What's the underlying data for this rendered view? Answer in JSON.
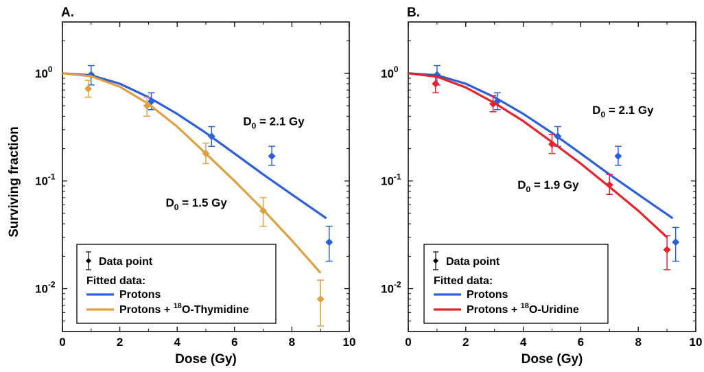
{
  "ylabel": "Surviving fraction",
  "colors": {
    "protons": "#2b5fd9",
    "thymidine": "#e0a040",
    "uridine": "#e8212a"
  },
  "chart_data": [
    {
      "type": "scatter",
      "panel_label": "A.",
      "xlabel": "Dose (Gy)",
      "xlim": [
        0,
        10
      ],
      "ylim": [
        0.004,
        3
      ],
      "yscale": "log",
      "x_ticks": [
        "0",
        "2",
        "4",
        "6",
        "8",
        "10"
      ],
      "y_ticks": [
        {
          "value": 1,
          "base": "10",
          "exp": "0"
        },
        {
          "value": 0.1,
          "base": "10",
          "exp": "-1"
        },
        {
          "value": 0.01,
          "base": "10",
          "exp": "-2"
        }
      ],
      "series": [
        {
          "name": "Protons",
          "color": "#2b5fd9",
          "points": [
            {
              "x": 1.0,
              "y": 0.97,
              "lo": 0.78,
              "hi": 1.18
            },
            {
              "x": 3.1,
              "y": 0.55,
              "lo": 0.46,
              "hi": 0.66
            },
            {
              "x": 5.2,
              "y": 0.26,
              "lo": 0.21,
              "hi": 0.32
            },
            {
              "x": 7.3,
              "y": 0.17,
              "lo": 0.14,
              "hi": 0.21
            },
            {
              "x": 9.3,
              "y": 0.027,
              "lo": 0.018,
              "hi": 0.038
            }
          ],
          "fit": {
            "x": [
              0,
              1,
              2,
              3,
              4,
              5,
              6,
              7,
              8,
              9.2
            ],
            "y": [
              1.0,
              0.96,
              0.8,
              0.6,
              0.42,
              0.28,
              0.18,
              0.115,
              0.075,
              0.045
            ]
          }
        },
        {
          "name": "Protons + ¹⁸O-Thymidine",
          "color": "#e0a040",
          "points": [
            {
              "x": 0.9,
              "y": 0.72,
              "lo": 0.6,
              "hi": 0.86
            },
            {
              "x": 2.95,
              "y": 0.5,
              "lo": 0.4,
              "hi": 0.6
            },
            {
              "x": 5.0,
              "y": 0.18,
              "lo": 0.145,
              "hi": 0.225
            },
            {
              "x": 7.0,
              "y": 0.053,
              "lo": 0.038,
              "hi": 0.07
            },
            {
              "x": 9.0,
              "y": 0.008,
              "lo": 0.0045,
              "hi": 0.012
            }
          ],
          "fit": {
            "x": [
              0,
              1,
              2,
              3,
              4,
              5,
              6,
              7,
              8,
              9
            ],
            "y": [
              1.0,
              0.94,
              0.75,
              0.52,
              0.32,
              0.18,
              0.1,
              0.054,
              0.028,
              0.014
            ]
          }
        }
      ],
      "annotations": [
        {
          "text_pre": "D",
          "sub": "0",
          "text_post": " = 2.1 Gy",
          "x": 6.3,
          "y": 0.33
        },
        {
          "text_pre": "D",
          "sub": "0",
          "text_post": " = 1.5 Gy",
          "x": 3.6,
          "y": 0.058
        }
      ],
      "legend": {
        "data_point": "Data point",
        "fitted_header": "Fitted data:",
        "entries": [
          {
            "label": "Protons",
            "color": "#2b5fd9"
          },
          {
            "label_pre": "Protons + ",
            "label_sup": "18",
            "label_post": "O-Thymidine",
            "color": "#e0a040"
          }
        ]
      }
    },
    {
      "type": "scatter",
      "panel_label": "B.",
      "xlabel": "Dose (Gy)",
      "xlim": [
        0,
        10
      ],
      "ylim": [
        0.004,
        3
      ],
      "yscale": "log",
      "x_ticks": [
        "0",
        "2",
        "4",
        "6",
        "8",
        "10"
      ],
      "y_ticks": [
        {
          "value": 1,
          "base": "10",
          "exp": "0"
        },
        {
          "value": 0.1,
          "base": "10",
          "exp": "-1"
        },
        {
          "value": 0.01,
          "base": "10",
          "exp": "-2"
        }
      ],
      "series": [
        {
          "name": "Protons",
          "color": "#2b5fd9",
          "points": [
            {
              "x": 1.0,
              "y": 0.97,
              "lo": 0.78,
              "hi": 1.18
            },
            {
              "x": 3.1,
              "y": 0.55,
              "lo": 0.46,
              "hi": 0.66
            },
            {
              "x": 5.2,
              "y": 0.26,
              "lo": 0.21,
              "hi": 0.32
            },
            {
              "x": 7.3,
              "y": 0.17,
              "lo": 0.14,
              "hi": 0.21
            },
            {
              "x": 9.3,
              "y": 0.027,
              "lo": 0.018,
              "hi": 0.037
            }
          ],
          "fit": {
            "x": [
              0,
              1,
              2,
              3,
              4,
              5,
              6,
              7,
              8,
              9.2
            ],
            "y": [
              1.0,
              0.96,
              0.8,
              0.6,
              0.42,
              0.28,
              0.18,
              0.115,
              0.075,
              0.045
            ]
          }
        },
        {
          "name": "Protons + ¹⁸O-Uridine",
          "color": "#e8212a",
          "points": [
            {
              "x": 0.95,
              "y": 0.8,
              "lo": 0.66,
              "hi": 0.96
            },
            {
              "x": 2.95,
              "y": 0.52,
              "lo": 0.44,
              "hi": 0.62
            },
            {
              "x": 5.0,
              "y": 0.22,
              "lo": 0.18,
              "hi": 0.27
            },
            {
              "x": 7.0,
              "y": 0.092,
              "lo": 0.075,
              "hi": 0.115
            },
            {
              "x": 9.0,
              "y": 0.023,
              "lo": 0.015,
              "hi": 0.031
            }
          ],
          "fit": {
            "x": [
              0,
              1,
              2,
              3,
              4,
              5,
              6,
              7,
              8,
              9
            ],
            "y": [
              1.0,
              0.93,
              0.74,
              0.53,
              0.36,
              0.23,
              0.145,
              0.088,
              0.053,
              0.03
            ]
          }
        }
      ],
      "annotations": [
        {
          "text_pre": "D",
          "sub": "0",
          "text_post": " = 2.1 Gy",
          "x": 6.4,
          "y": 0.42
        },
        {
          "text_pre": "D",
          "sub": "0",
          "text_post": " = 1.9 Gy",
          "x": 3.8,
          "y": 0.085
        }
      ],
      "legend": {
        "data_point": "Data point",
        "fitted_header": "Fitted data:",
        "entries": [
          {
            "label": "Protons",
            "color": "#2b5fd9"
          },
          {
            "label_pre": "Protons + ",
            "label_sup": "18",
            "label_post": "O-Uridine",
            "color": "#e8212a"
          }
        ]
      }
    }
  ]
}
